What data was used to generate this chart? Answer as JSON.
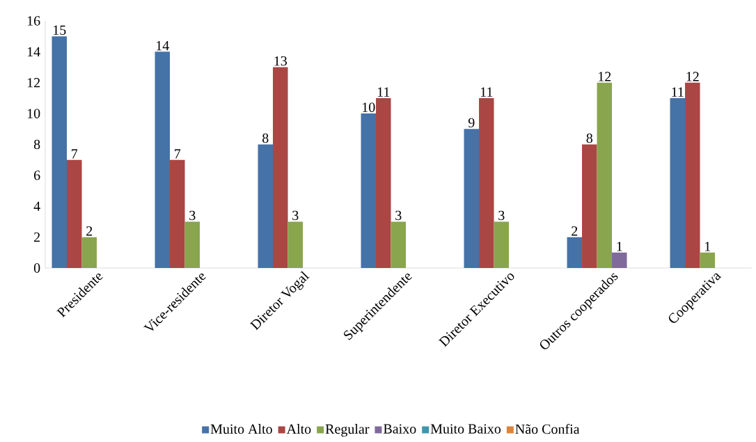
{
  "chart_data": {
    "type": "bar",
    "categories": [
      "Presidente",
      "Vice-residente",
      "Diretor Vogal",
      "Superintendente",
      "Diretor Executivo",
      "Outros cooperados",
      "Cooperativa"
    ],
    "series": [
      {
        "name": "Muito Alto",
        "color": "#4572a7",
        "values": [
          15,
          14,
          8,
          10,
          9,
          2,
          11
        ]
      },
      {
        "name": "Alto",
        "color": "#aa4643",
        "values": [
          7,
          7,
          13,
          11,
          11,
          8,
          12
        ]
      },
      {
        "name": "Regular",
        "color": "#89a54e",
        "values": [
          2,
          3,
          3,
          3,
          3,
          12,
          1
        ]
      },
      {
        "name": "Baixo",
        "color": "#80699b",
        "values": [
          null,
          null,
          null,
          null,
          null,
          1,
          null
        ]
      },
      {
        "name": "Muito Baixo",
        "color": "#3d96ae",
        "values": [
          null,
          null,
          null,
          null,
          null,
          null,
          null
        ]
      },
      {
        "name": "Não Confia",
        "color": "#db843d",
        "values": [
          null,
          null,
          null,
          null,
          null,
          null,
          null
        ]
      }
    ],
    "ylim": [
      0,
      16
    ],
    "yticks": [
      0,
      2,
      4,
      6,
      8,
      10,
      12,
      14,
      16
    ],
    "grid": false,
    "legend": "bottom",
    "data_labels": true
  }
}
